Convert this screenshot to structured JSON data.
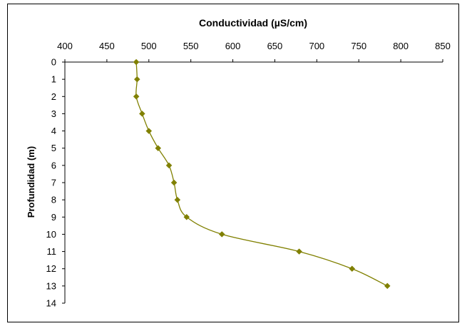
{
  "chart_data": {
    "type": "line",
    "title": "Conductividad (µS/cm)",
    "xlabel": "Conductividad (µS/cm)",
    "ylabel": "Profundidad (m)",
    "xlim": [
      400,
      850
    ],
    "ylim": [
      0,
      14
    ],
    "y_inverted": true,
    "x_axis_position": "top",
    "x_ticks": [
      400,
      450,
      500,
      550,
      600,
      650,
      700,
      750,
      800,
      850
    ],
    "y_ticks": [
      0,
      1,
      2,
      3,
      4,
      5,
      6,
      7,
      8,
      9,
      10,
      11,
      12,
      13,
      14
    ],
    "grid": false,
    "legend": "none",
    "smooth": true,
    "marker": "diamond",
    "series": [
      {
        "color": "#808000",
        "points": [
          {
            "x": 485,
            "y": 0
          },
          {
            "x": 486,
            "y": 1
          },
          {
            "x": 485,
            "y": 2
          },
          {
            "x": 492,
            "y": 3
          },
          {
            "x": 500,
            "y": 4
          },
          {
            "x": 511,
            "y": 5
          },
          {
            "x": 524,
            "y": 6
          },
          {
            "x": 530,
            "y": 7
          },
          {
            "x": 534,
            "y": 8
          },
          {
            "x": 545,
            "y": 9
          },
          {
            "x": 587,
            "y": 10
          },
          {
            "x": 679,
            "y": 11
          },
          {
            "x": 742,
            "y": 12
          },
          {
            "x": 784,
            "y": 13
          }
        ]
      }
    ]
  }
}
